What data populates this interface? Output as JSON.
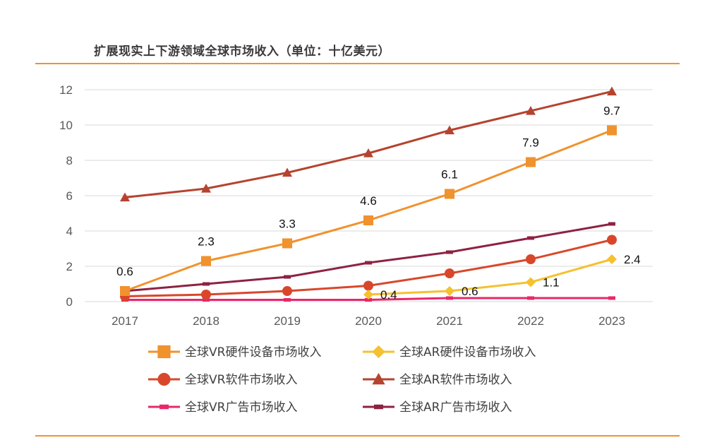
{
  "chart_data": {
    "type": "line",
    "title": "扩展现实上下游领域全球市场收入（单位：十亿美元）",
    "x": [
      "2017",
      "2018",
      "2019",
      "2020",
      "2021",
      "2022",
      "2023"
    ],
    "ylim": [
      0,
      12
    ],
    "yticks": [
      "0",
      "2",
      "4",
      "6",
      "8",
      "10",
      "12"
    ],
    "grid": true,
    "legend_position": "bottom",
    "series": [
      {
        "name": "全球VR硬件设备市场收入",
        "color": "#F0922E",
        "marker": "square",
        "values": [
          0.6,
          2.3,
          3.3,
          4.6,
          6.1,
          7.9,
          9.7
        ],
        "labels": [
          "0.6",
          "2.3",
          "3.3",
          "4.6",
          "6.1",
          "7.9",
          "9.7"
        ]
      },
      {
        "name": "全球AR硬件设备市场收入",
        "color": "#F5C12E",
        "marker": "diamond",
        "values": [
          null,
          null,
          null,
          0.4,
          0.6,
          1.1,
          2.4
        ],
        "labels": [
          null,
          null,
          null,
          "0.4",
          "0.6",
          "1.1",
          "2.4"
        ]
      },
      {
        "name": "全球VR软件市场收入",
        "color": "#D9472B",
        "marker": "circle",
        "values": [
          0.3,
          0.4,
          0.6,
          0.9,
          1.6,
          2.4,
          3.5
        ]
      },
      {
        "name": "全球AR软件市场收入",
        "color": "#B5432F",
        "marker": "triangle",
        "values": [
          5.9,
          6.4,
          7.3,
          8.4,
          9.7,
          10.8,
          11.9
        ]
      },
      {
        "name": "全球VR广告市场收入",
        "color": "#E8286A",
        "marker": "dash",
        "values": [
          0.1,
          0.1,
          0.1,
          0.1,
          0.2,
          0.2,
          0.2
        ]
      },
      {
        "name": "全球AR广告市场收入",
        "color": "#8E2242",
        "marker": "dash",
        "values": [
          0.6,
          1.0,
          1.4,
          2.2,
          2.8,
          3.6,
          4.4
        ]
      }
    ]
  }
}
